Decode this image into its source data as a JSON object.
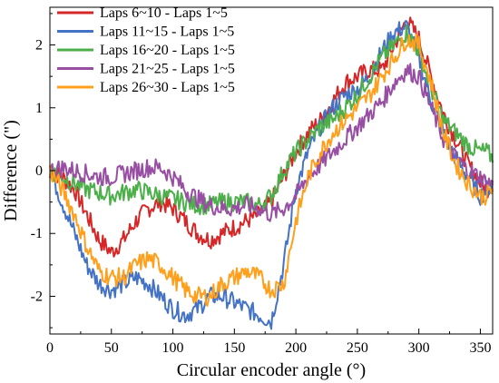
{
  "chart_data": {
    "type": "line",
    "xlabel": "Circular encoder angle (°)",
    "ylabel": "Difference (\")",
    "xlim": [
      0,
      360
    ],
    "ylim": [
      -2.6,
      2.6
    ],
    "x_ticks": [
      0,
      50,
      100,
      150,
      200,
      250,
      300,
      350
    ],
    "y_ticks": [
      -2,
      -1,
      0,
      1,
      2
    ],
    "grid": false,
    "legend_position": "top-left",
    "series": [
      {
        "name": "Laps 6~10 - Laps 1~5",
        "color": "#d62728",
        "x": [
          0,
          10,
          20,
          30,
          40,
          50,
          60,
          70,
          80,
          90,
          100,
          110,
          120,
          130,
          140,
          150,
          160,
          170,
          180,
          190,
          200,
          210,
          220,
          230,
          240,
          250,
          260,
          270,
          280,
          290,
          300,
          310,
          320,
          330,
          340,
          350,
          355,
          360
        ],
        "values": [
          0,
          -0.1,
          -0.3,
          -0.7,
          -1.1,
          -1.3,
          -1.1,
          -0.8,
          -0.6,
          -0.5,
          -0.6,
          -0.8,
          -1.0,
          -1.1,
          -1.0,
          -0.9,
          -0.8,
          -0.7,
          -0.5,
          -0.1,
          0.3,
          0.6,
          0.8,
          1.1,
          1.4,
          1.5,
          1.6,
          1.6,
          2.0,
          2.4,
          2.1,
          1.5,
          0.9,
          0.5,
          0.1,
          -0.2,
          -0.3,
          -0.2
        ]
      },
      {
        "name": "Laps 11~15 - Laps 1~5",
        "color": "#4472c4",
        "x": [
          0,
          10,
          20,
          30,
          40,
          50,
          60,
          70,
          80,
          90,
          100,
          110,
          120,
          130,
          140,
          150,
          160,
          170,
          180,
          190,
          200,
          210,
          220,
          230,
          240,
          250,
          260,
          270,
          280,
          290,
          300,
          310,
          320,
          330,
          340,
          350,
          355,
          360
        ],
        "values": [
          0,
          -0.5,
          -1.0,
          -1.5,
          -1.8,
          -1.9,
          -1.8,
          -1.7,
          -1.8,
          -2.0,
          -2.2,
          -2.3,
          -2.2,
          -2.0,
          -2.0,
          -2.1,
          -2.2,
          -2.3,
          -2.4,
          -1.5,
          -0.3,
          0.3,
          0.7,
          1.0,
          1.2,
          1.3,
          1.5,
          1.9,
          2.2,
          2.3,
          1.8,
          1.1,
          0.6,
          0.2,
          -0.1,
          -0.4,
          -0.3,
          -0.2
        ]
      },
      {
        "name": "Laps 16~20 - Laps 1~5",
        "color": "#4daf4a",
        "x": [
          0,
          10,
          20,
          30,
          40,
          50,
          60,
          70,
          80,
          90,
          100,
          110,
          120,
          130,
          140,
          150,
          160,
          170,
          180,
          190,
          200,
          210,
          220,
          230,
          240,
          250,
          260,
          270,
          280,
          290,
          300,
          310,
          320,
          330,
          340,
          350,
          355,
          360
        ],
        "values": [
          0,
          -0.1,
          -0.2,
          -0.3,
          -0.35,
          -0.4,
          -0.35,
          -0.3,
          -0.35,
          -0.4,
          -0.45,
          -0.5,
          -0.55,
          -0.55,
          -0.5,
          -0.5,
          -0.5,
          -0.55,
          -0.4,
          0.0,
          0.3,
          0.5,
          0.7,
          0.8,
          1.0,
          1.2,
          1.5,
          1.8,
          2.0,
          2.2,
          1.9,
          1.3,
          0.8,
          0.6,
          0.4,
          0.3,
          0.3,
          0.2
        ]
      },
      {
        "name": "Laps 21~25 - Laps 1~5",
        "color": "#984ea3",
        "x": [
          0,
          10,
          20,
          30,
          40,
          50,
          60,
          70,
          80,
          90,
          100,
          110,
          120,
          130,
          140,
          150,
          160,
          170,
          180,
          190,
          200,
          210,
          220,
          230,
          240,
          250,
          260,
          270,
          280,
          290,
          300,
          310,
          320,
          330,
          340,
          350,
          355,
          360
        ],
        "values": [
          0,
          0.05,
          0.0,
          -0.05,
          -0.1,
          -0.1,
          -0.05,
          0.0,
          0.05,
          0.05,
          -0.1,
          -0.3,
          -0.45,
          -0.55,
          -0.6,
          -0.6,
          -0.55,
          -0.6,
          -0.7,
          -0.6,
          -0.4,
          -0.1,
          0.1,
          0.3,
          0.5,
          0.7,
          0.9,
          1.1,
          1.4,
          1.6,
          1.5,
          1.0,
          0.5,
          0.2,
          0.0,
          -0.1,
          -0.2,
          -0.2
        ]
      },
      {
        "name": "Laps 26~30 - Laps 1~5",
        "color": "#ff9f1c",
        "x": [
          0,
          10,
          20,
          30,
          40,
          50,
          60,
          70,
          80,
          90,
          100,
          110,
          120,
          130,
          140,
          150,
          160,
          170,
          180,
          190,
          200,
          210,
          220,
          230,
          240,
          250,
          260,
          270,
          280,
          290,
          300,
          310,
          320,
          330,
          340,
          350,
          355,
          360
        ],
        "values": [
          0,
          -0.3,
          -0.7,
          -1.2,
          -1.6,
          -1.7,
          -1.7,
          -1.5,
          -1.4,
          -1.5,
          -1.7,
          -1.9,
          -2.0,
          -2.0,
          -1.8,
          -1.7,
          -1.6,
          -1.7,
          -1.9,
          -1.8,
          -0.8,
          -0.1,
          0.3,
          0.6,
          0.8,
          1.0,
          1.2,
          1.5,
          1.8,
          2.1,
          2.0,
          1.4,
          0.6,
          0.1,
          -0.2,
          -0.4,
          -0.4,
          -0.3
        ]
      }
    ]
  }
}
